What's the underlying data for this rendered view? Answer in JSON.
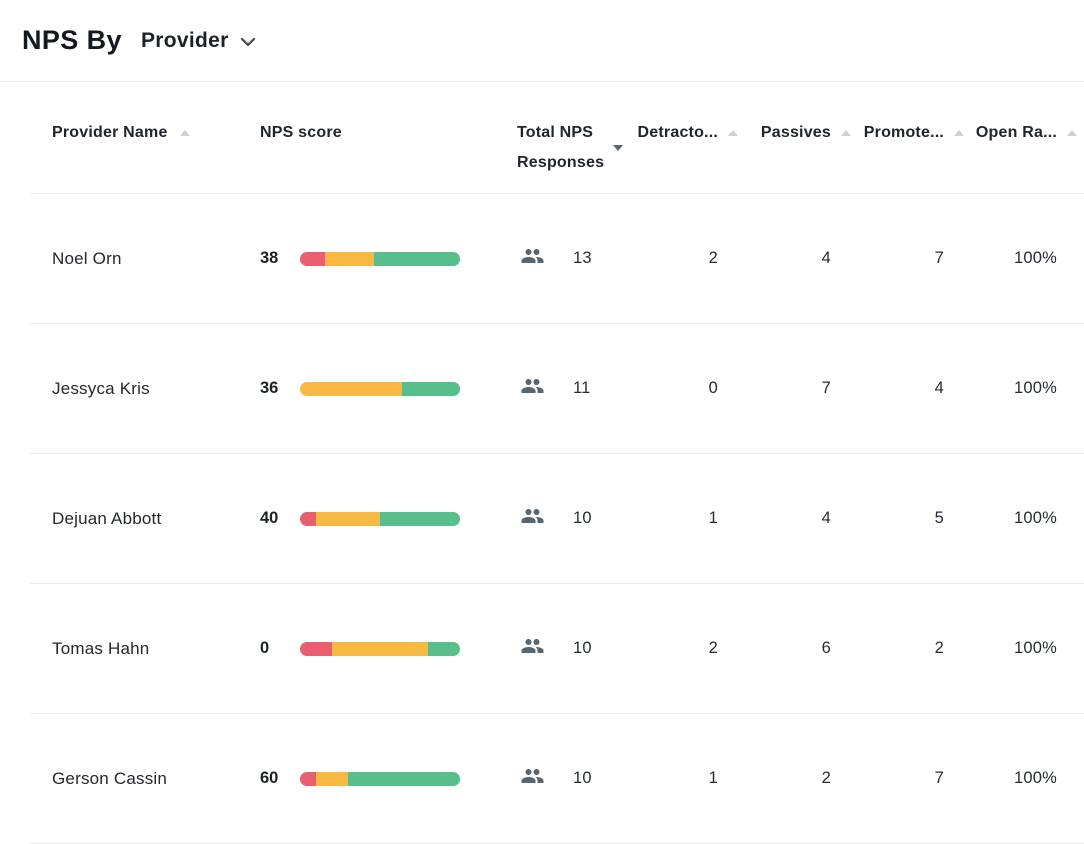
{
  "header": {
    "title": "NPS By",
    "group_by": {
      "value": "Provider"
    }
  },
  "table": {
    "columns": [
      {
        "label": "Provider Name",
        "sort": "none",
        "sort_icon": "asc"
      },
      {
        "label": "NPS score",
        "sort": "none",
        "sort_icon": null
      },
      {
        "label": "Total NPS Responses",
        "sort": "desc",
        "sort_icon": "desc-active"
      },
      {
        "label": "Detracto...",
        "sort": "none",
        "sort_icon": "asc"
      },
      {
        "label": "Passives",
        "sort": "none",
        "sort_icon": "asc"
      },
      {
        "label": "Promote...",
        "sort": "none",
        "sort_icon": "asc"
      },
      {
        "label": "Open Ra...",
        "sort": "none",
        "sort_icon": "asc"
      }
    ],
    "rows": [
      {
        "provider": "Noel Orn",
        "nps_score": "38",
        "bar_pct": [
          15.4,
          30.8,
          53.8
        ],
        "total_responses": "13",
        "detractors": "2",
        "passives": "4",
        "promoters": "7",
        "open_rate": "100%"
      },
      {
        "provider": "Jessyca Kris",
        "nps_score": "36",
        "bar_pct": [
          0,
          63.6,
          36.4
        ],
        "total_responses": "11",
        "detractors": "0",
        "passives": "7",
        "promoters": "4",
        "open_rate": "100%"
      },
      {
        "provider": "Dejuan Abbott",
        "nps_score": "40",
        "bar_pct": [
          10,
          40,
          50
        ],
        "total_responses": "10",
        "detractors": "1",
        "passives": "4",
        "promoters": "5",
        "open_rate": "100%"
      },
      {
        "provider": "Tomas Hahn",
        "nps_score": "0",
        "bar_pct": [
          20,
          60,
          20
        ],
        "total_responses": "10",
        "detractors": "2",
        "passives": "6",
        "promoters": "2",
        "open_rate": "100%"
      },
      {
        "provider": "Gerson Cassin",
        "nps_score": "60",
        "bar_pct": [
          10,
          20,
          70
        ],
        "total_responses": "10",
        "detractors": "1",
        "passives": "2",
        "promoters": "7",
        "open_rate": "100%"
      }
    ]
  },
  "colors": {
    "detractors": "#EA5F6F",
    "passives": "#F8B942",
    "promoters": "#58BE8B",
    "people_icon": "#5A6572",
    "divider": "#E8EAED",
    "sort_inactive": "#CDD1D7",
    "sort_active": "#5A6572"
  }
}
